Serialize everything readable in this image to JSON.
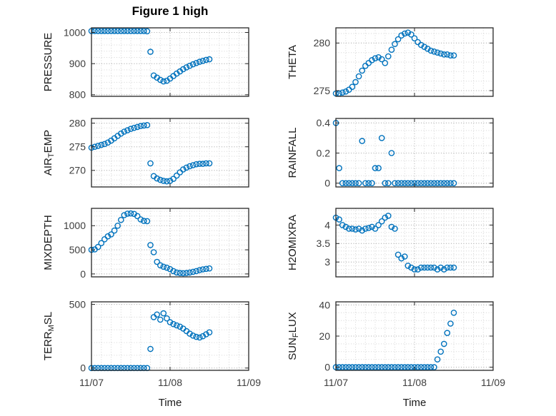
{
  "figure": {
    "title": "Figure 1 high",
    "xlabel": "Time",
    "marker_color": "#0072BD",
    "axis_color": "#262626",
    "grid_color": "#aaaaaa",
    "minor_grid_color": "#d5d5d5"
  },
  "chart_data": [
    {
      "id": "pressure",
      "name": "PRESSURE",
      "type": "scatter",
      "ylabel": [
        {
          "text": "PRESSURE",
          "sub": false
        }
      ],
      "xlim": [
        0,
        48
      ],
      "ylim": [
        795,
        1015
      ],
      "xticks": {
        "values": [
          0,
          24,
          48
        ],
        "labels": [
          "11/07",
          "11/08",
          "11/09"
        ]
      },
      "yticks": {
        "values": [
          800,
          900,
          1000
        ],
        "labels": [
          "800",
          "900",
          "1000"
        ]
      },
      "x_minor_step": 3,
      "y_minor_step": 20,
      "show_x_tick_labels": false,
      "x_unit": "hours since 11/07 00:00",
      "x": [
        0,
        1,
        2,
        3,
        4,
        5,
        6,
        7,
        8,
        9,
        10,
        11,
        12,
        13,
        14,
        15,
        16,
        17,
        18,
        19,
        20,
        21,
        22,
        23,
        24,
        25,
        26,
        27,
        28,
        29,
        30,
        31,
        32,
        33,
        34,
        35,
        36
      ],
      "values": [
        1005,
        1005,
        1005,
        1005,
        1005,
        1005,
        1005,
        1005,
        1005,
        1005,
        1005,
        1005,
        1005,
        1005,
        1005,
        1005,
        1005,
        1004,
        938,
        862,
        855,
        848,
        843,
        845,
        852,
        860,
        868,
        875,
        882,
        888,
        893,
        898,
        902,
        906,
        909,
        912,
        914
      ]
    },
    {
      "id": "theta",
      "name": "THETA",
      "type": "scatter",
      "ylabel": [
        {
          "text": "THETA",
          "sub": false
        }
      ],
      "xlim": [
        0,
        48
      ],
      "ylim": [
        274.4,
        281.6
      ],
      "xticks": {
        "values": [
          0,
          24,
          48
        ],
        "labels": [
          "11/07",
          "11/08",
          "11/09"
        ]
      },
      "yticks": {
        "values": [
          275,
          280
        ],
        "labels": [
          "275",
          "280"
        ]
      },
      "x_minor_step": 3,
      "y_minor_step": 1,
      "show_x_tick_labels": false,
      "x_unit": "hours since 11/07 00:00",
      "x": [
        0,
        1,
        2,
        3,
        4,
        5,
        6,
        7,
        8,
        9,
        10,
        11,
        12,
        13,
        14,
        15,
        16,
        17,
        18,
        19,
        20,
        21,
        22,
        23,
        24,
        25,
        26,
        27,
        28,
        29,
        30,
        31,
        32,
        33,
        34,
        35,
        36
      ],
      "values": [
        274.7,
        274.7,
        274.8,
        274.9,
        275.1,
        275.4,
        275.9,
        276.5,
        277.1,
        277.6,
        277.9,
        278.2,
        278.4,
        278.5,
        278.3,
        277.9,
        278.6,
        279.3,
        279.9,
        280.4,
        280.8,
        281.0,
        281.1,
        280.9,
        280.5,
        280.1,
        279.8,
        279.6,
        279.4,
        279.2,
        279.1,
        279.0,
        278.9,
        278.8,
        278.8,
        278.7,
        278.7
      ]
    },
    {
      "id": "air_temp",
      "name": "AIR_TEMP",
      "type": "scatter",
      "ylabel": [
        {
          "text": "AIR",
          "sub": false
        },
        {
          "text": "T",
          "sub": true
        },
        {
          "text": "EMP",
          "sub": false
        }
      ],
      "xlim": [
        0,
        48
      ],
      "ylim": [
        266.5,
        281
      ],
      "xticks": {
        "values": [
          0,
          24,
          48
        ],
        "labels": [
          "11/07",
          "11/08",
          "11/09"
        ]
      },
      "yticks": {
        "values": [
          270,
          275,
          280
        ],
        "labels": [
          "270",
          "275",
          "280"
        ]
      },
      "x_minor_step": 3,
      "y_minor_step": 1,
      "show_x_tick_labels": false,
      "x_unit": "hours since 11/07 00:00",
      "x": [
        0,
        1,
        2,
        3,
        4,
        5,
        6,
        7,
        8,
        9,
        10,
        11,
        12,
        13,
        14,
        15,
        16,
        17,
        18,
        19,
        20,
        21,
        22,
        23,
        24,
        25,
        26,
        27,
        28,
        29,
        30,
        31,
        32,
        33,
        34,
        35,
        36
      ],
      "values": [
        274.8,
        275.0,
        275.2,
        275.4,
        275.6,
        275.9,
        276.3,
        276.8,
        277.3,
        277.8,
        278.2,
        278.5,
        278.8,
        279.0,
        279.2,
        279.4,
        279.5,
        279.6,
        271.5,
        268.8,
        268.3,
        268.0,
        267.8,
        267.7,
        267.8,
        268.2,
        268.9,
        269.6,
        270.2,
        270.6,
        270.9,
        271.1,
        271.3,
        271.4,
        271.4,
        271.5,
        271.5
      ]
    },
    {
      "id": "rainfall",
      "name": "RAINFALL",
      "type": "scatter",
      "ylabel": [
        {
          "text": "RAINFALL",
          "sub": false
        }
      ],
      "xlim": [
        0,
        48
      ],
      "ylim": [
        -0.025,
        0.43
      ],
      "xticks": {
        "values": [
          0,
          24,
          48
        ],
        "labels": [
          "11/07",
          "11/08",
          "11/09"
        ]
      },
      "yticks": {
        "values": [
          0,
          0.2,
          0.4
        ],
        "labels": [
          "0",
          "0.2",
          "0.4"
        ]
      },
      "x_minor_step": 3,
      "y_minor_step": 0.05,
      "show_x_tick_labels": false,
      "x_unit": "hours since 11/07 00:00",
      "x": [
        0,
        1,
        2,
        3,
        4,
        5,
        6,
        7,
        8,
        9,
        10,
        11,
        12,
        13,
        14,
        15,
        16,
        17,
        18,
        19,
        20,
        21,
        22,
        23,
        24,
        25,
        26,
        27,
        28,
        29,
        30,
        31,
        32,
        33,
        34,
        35,
        36
      ],
      "values": [
        0.4,
        0.1,
        0,
        0,
        0,
        0,
        0,
        0,
        0.28,
        0,
        0,
        0,
        0.1,
        0.1,
        0.3,
        0,
        0,
        0.2,
        0,
        0,
        0,
        0,
        0,
        0,
        0,
        0,
        0,
        0,
        0,
        0,
        0,
        0,
        0,
        0,
        0,
        0,
        0
      ]
    },
    {
      "id": "mixdepth",
      "name": "MIXDEPTH",
      "type": "scatter",
      "ylabel": [
        {
          "text": "MIXDEPTH",
          "sub": false
        }
      ],
      "xlim": [
        0,
        48
      ],
      "ylim": [
        -60,
        1360
      ],
      "xticks": {
        "values": [
          0,
          24,
          48
        ],
        "labels": [
          "11/07",
          "11/08",
          "11/09"
        ]
      },
      "yticks": {
        "values": [
          0,
          500,
          1000
        ],
        "labels": [
          "0",
          "500",
          "1000"
        ]
      },
      "x_minor_step": 3,
      "y_minor_step": 100,
      "show_x_tick_labels": false,
      "x_unit": "hours since 11/07 00:00",
      "x": [
        0,
        1,
        2,
        3,
        4,
        5,
        6,
        7,
        8,
        9,
        10,
        11,
        12,
        13,
        14,
        15,
        16,
        17,
        18,
        19,
        20,
        21,
        22,
        23,
        24,
        25,
        26,
        27,
        28,
        29,
        30,
        31,
        32,
        33,
        34,
        35,
        36
      ],
      "values": [
        500,
        510,
        560,
        640,
        720,
        780,
        820,
        900,
        1000,
        1120,
        1220,
        1250,
        1255,
        1245,
        1200,
        1130,
        1100,
        1095,
        600,
        450,
        250,
        180,
        150,
        130,
        100,
        60,
        30,
        20,
        15,
        20,
        30,
        45,
        60,
        80,
        95,
        105,
        115
      ]
    },
    {
      "id": "h2omixra",
      "name": "H2OMIXRA",
      "type": "scatter",
      "ylabel": [
        {
          "text": "H2OMIXRA",
          "sub": false
        }
      ],
      "xlim": [
        0,
        48
      ],
      "ylim": [
        2.6,
        4.45
      ],
      "xticks": {
        "values": [
          0,
          24,
          48
        ],
        "labels": [
          "11/07",
          "11/08",
          "11/09"
        ]
      },
      "yticks": {
        "values": [
          3,
          3.5,
          4
        ],
        "labels": [
          "3",
          "3.5",
          "4"
        ]
      },
      "x_minor_step": 3,
      "y_minor_step": 0.1,
      "show_x_tick_labels": false,
      "x_unit": "hours since 11/07 00:00",
      "x": [
        0,
        1,
        2,
        3,
        4,
        5,
        6,
        7,
        8,
        9,
        10,
        11,
        12,
        13,
        14,
        15,
        16,
        17,
        18,
        19,
        20,
        21,
        22,
        23,
        24,
        25,
        26,
        27,
        28,
        29,
        30,
        31,
        32,
        33,
        34,
        35,
        36
      ],
      "values": [
        4.2,
        4.15,
        4.0,
        3.95,
        3.9,
        3.9,
        3.88,
        3.9,
        3.85,
        3.9,
        3.92,
        3.95,
        3.9,
        4.0,
        4.1,
        4.2,
        4.25,
        3.95,
        3.9,
        3.2,
        3.1,
        3.15,
        2.9,
        2.85,
        2.8,
        2.8,
        2.85,
        2.85,
        2.85,
        2.85,
        2.85,
        2.8,
        2.85,
        2.8,
        2.85,
        2.85,
        2.85
      ]
    },
    {
      "id": "terr_msl",
      "name": "TERR_MSL",
      "type": "scatter",
      "ylabel": [
        {
          "text": "TERR",
          "sub": false
        },
        {
          "text": "M",
          "sub": true
        },
        {
          "text": "SL",
          "sub": false
        }
      ],
      "xlim": [
        0,
        48
      ],
      "ylim": [
        -18,
        520
      ],
      "xticks": {
        "values": [
          0,
          24,
          48
        ],
        "labels": [
          "11/07",
          "11/08",
          "11/09"
        ]
      },
      "yticks": {
        "values": [
          0,
          500
        ],
        "labels": [
          "0",
          "500"
        ]
      },
      "x_minor_step": 3,
      "y_minor_step": 100,
      "show_x_tick_labels": true,
      "x_unit": "hours since 11/07 00:00",
      "x": [
        0,
        1,
        2,
        3,
        4,
        5,
        6,
        7,
        8,
        9,
        10,
        11,
        12,
        13,
        14,
        15,
        16,
        17,
        18,
        19,
        20,
        21,
        22,
        23,
        24,
        25,
        26,
        27,
        28,
        29,
        30,
        31,
        32,
        33,
        34,
        35,
        36
      ],
      "values": [
        0,
        0,
        0,
        0,
        0,
        0,
        0,
        0,
        0,
        0,
        0,
        0,
        0,
        0,
        0,
        0,
        0,
        0,
        150,
        400,
        420,
        380,
        430,
        390,
        360,
        345,
        335,
        325,
        310,
        290,
        270,
        255,
        245,
        240,
        250,
        265,
        280
      ]
    },
    {
      "id": "sun_flux",
      "name": "SUN_FLUX",
      "type": "scatter",
      "ylabel": [
        {
          "text": "SUN",
          "sub": false
        },
        {
          "text": "F",
          "sub": true
        },
        {
          "text": "LUX",
          "sub": false
        }
      ],
      "xlim": [
        0,
        48
      ],
      "ylim": [
        -2,
        42
      ],
      "xticks": {
        "values": [
          0,
          24,
          48
        ],
        "labels": [
          "11/07",
          "11/08",
          "11/09"
        ]
      },
      "yticks": {
        "values": [
          0,
          20,
          40
        ],
        "labels": [
          "0",
          "20",
          "40"
        ]
      },
      "x_minor_step": 3,
      "y_minor_step": 5,
      "show_x_tick_labels": true,
      "x_unit": "hours since 11/07 00:00",
      "x": [
        0,
        1,
        2,
        3,
        4,
        5,
        6,
        7,
        8,
        9,
        10,
        11,
        12,
        13,
        14,
        15,
        16,
        17,
        18,
        19,
        20,
        21,
        22,
        23,
        24,
        25,
        26,
        27,
        28,
        29,
        30,
        31,
        32,
        33,
        34,
        35,
        36
      ],
      "values": [
        0,
        0,
        0,
        0,
        0,
        0,
        0,
        0,
        0,
        0,
        0,
        0,
        0,
        0,
        0,
        0,
        0,
        0,
        0,
        0,
        0,
        0,
        0,
        0,
        0,
        0,
        0,
        0,
        0,
        0,
        0,
        5,
        10,
        15,
        22,
        28,
        35
      ]
    }
  ]
}
